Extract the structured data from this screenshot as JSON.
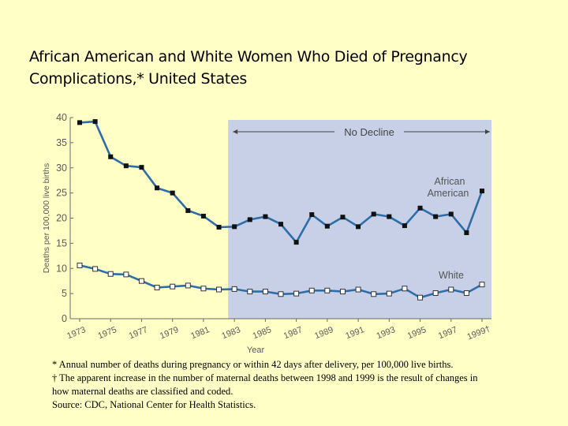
{
  "title_line1": "African American and White Women Who Died of Pregnancy",
  "title_line2": "Complications,* United States",
  "footnotes": {
    "asterisk": "* Annual number of deaths during pregnancy or within 42 days after delivery, per 100,000 live births.",
    "dagger": "† The apparent increase in the number of maternal deaths between 1998 and 1999 is the result of changes in how maternal deaths are classified and coded.",
    "source": "Source: CDC, National Center for Health Statistics."
  },
  "colors": {
    "background": "#ffffc6",
    "line": "#2f6da8",
    "shade": "#c7d0e6",
    "axis": "#6a6a6a",
    "text": "#5a5a5a"
  },
  "chart_data": {
    "type": "line",
    "xlabel": "Year",
    "ylabel": "Deaths per 100,000 live births",
    "ylim": [
      0,
      40
    ],
    "yticks": [
      0,
      5,
      10,
      15,
      20,
      25,
      30,
      35,
      40
    ],
    "xlim": [
      1973,
      1999
    ],
    "xtick_labels": [
      "1973",
      "1975",
      "1977",
      "1979",
      "1981",
      "1983",
      "1985",
      "1987",
      "1989",
      "1991",
      "1993",
      "1995",
      "1997",
      "1999†"
    ],
    "xtick_values": [
      1973,
      1975,
      1977,
      1979,
      1981,
      1983,
      1985,
      1987,
      1989,
      1991,
      1993,
      1995,
      1997,
      1999
    ],
    "x": [
      1973,
      1974,
      1975,
      1976,
      1977,
      1978,
      1979,
      1980,
      1981,
      1982,
      1983,
      1984,
      1985,
      1986,
      1987,
      1988,
      1989,
      1990,
      1991,
      1992,
      1993,
      1994,
      1995,
      1996,
      1997,
      1998,
      1999
    ],
    "series": [
      {
        "name": "African American",
        "marker": "filled-square",
        "values": [
          39.0,
          39.2,
          32.2,
          30.4,
          30.1,
          26.0,
          25.0,
          21.5,
          20.4,
          18.2,
          18.3,
          19.7,
          20.3,
          18.8,
          15.2,
          20.7,
          18.4,
          20.2,
          18.3,
          20.8,
          20.3,
          18.5,
          22.0,
          20.3,
          20.8,
          17.1,
          25.4
        ]
      },
      {
        "name": "White",
        "marker": "open-square",
        "values": [
          10.6,
          9.9,
          8.9,
          8.8,
          7.5,
          6.2,
          6.4,
          6.6,
          6.0,
          5.8,
          5.9,
          5.4,
          5.4,
          4.9,
          5.0,
          5.6,
          5.6,
          5.4,
          5.8,
          4.9,
          5.0,
          6.0,
          4.2,
          5.1,
          5.8,
          5.1,
          6.8
        ]
      }
    ],
    "annotations": [
      {
        "text": "No Decline",
        "x_start": 1983,
        "x_end": 1999
      },
      {
        "text": "African",
        "series": "African American"
      },
      {
        "text": "American",
        "series": "African American"
      },
      {
        "text": "White",
        "series": "White"
      }
    ],
    "shaded_region": {
      "x_start": 1983,
      "x_end": 1999
    },
    "grid": false
  }
}
